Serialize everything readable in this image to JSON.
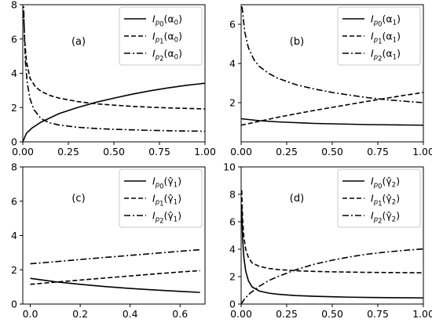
{
  "colors": {
    "line": "#000000",
    "background": "#ffffff",
    "legend_border": "#c8c8c8"
  },
  "chart_data": [
    {
      "type": "line",
      "panel_label": "(a)",
      "xlim": [
        0,
        1
      ],
      "ylim": [
        0,
        8
      ],
      "xticks": [
        "0.00",
        "0.25",
        "0.50",
        "0.75",
        "1.00"
      ],
      "yticks": [
        "0",
        "2",
        "4",
        "6",
        "8"
      ],
      "legend_position": "top-right",
      "series": [
        {
          "name": "I_{p_0}(α_0)",
          "legend": {
            "main": "I",
            "sub1": "p",
            "sub2": "0",
            "arg": "(α",
            "argsub": "0",
            "close": ")"
          },
          "style": "solid",
          "x": [
            0,
            0.02,
            0.05,
            0.1,
            0.2,
            0.3,
            0.4,
            0.5,
            0.6,
            0.7,
            0.8,
            0.9,
            1.0
          ],
          "y": [
            0.0,
            0.5,
            0.8,
            1.15,
            1.65,
            2.0,
            2.3,
            2.55,
            2.78,
            2.98,
            3.15,
            3.3,
            3.42
          ]
        },
        {
          "name": "I_{p_1}(α_0)",
          "legend": {
            "main": "I",
            "sub1": "p",
            "sub2": "1",
            "arg": "(α",
            "argsub": "0",
            "close": ")"
          },
          "style": "dashed",
          "x": [
            0.005,
            0.01,
            0.02,
            0.04,
            0.07,
            0.1,
            0.15,
            0.2,
            0.3,
            0.4,
            0.5,
            0.6,
            0.7,
            0.8,
            0.9,
            1.0
          ],
          "y": [
            7.5,
            6.0,
            4.7,
            3.7,
            3.2,
            2.95,
            2.7,
            2.55,
            2.35,
            2.22,
            2.14,
            2.07,
            2.02,
            1.98,
            1.95,
            1.92
          ]
        },
        {
          "name": "I_{p_2}(α_0)",
          "legend": {
            "main": "I",
            "sub1": "p",
            "sub2": "2",
            "arg": "(α",
            "argsub": "0",
            "close": ")"
          },
          "style": "dashdot",
          "x": [
            0.004,
            0.008,
            0.015,
            0.025,
            0.04,
            0.06,
            0.1,
            0.15,
            0.2,
            0.3,
            0.4,
            0.5,
            0.6,
            0.7,
            0.8,
            0.9,
            1.0
          ],
          "y": [
            8.4,
            6.5,
            4.6,
            3.4,
            2.5,
            1.9,
            1.35,
            1.1,
            0.98,
            0.85,
            0.78,
            0.73,
            0.7,
            0.67,
            0.65,
            0.63,
            0.62
          ]
        }
      ]
    },
    {
      "type": "line",
      "panel_label": "(b)",
      "xlim": [
        0,
        1
      ],
      "ylim": [
        0,
        7
      ],
      "xticks": [
        "0.00",
        "0.25",
        "0.50",
        "0.75",
        "1.00"
      ],
      "yticks": [
        "2",
        "4",
        "6"
      ],
      "legend_position": "top-right",
      "series": [
        {
          "name": "I_{p_0}(α_1)",
          "legend": {
            "main": "I",
            "sub1": "p",
            "sub2": "0",
            "arg": "(α",
            "argsub": "1",
            "close": ")"
          },
          "style": "solid",
          "x": [
            0,
            0.1,
            0.2,
            0.3,
            0.4,
            0.5,
            0.6,
            0.7,
            0.8,
            0.9,
            1.0
          ],
          "y": [
            1.18,
            1.08,
            1.02,
            0.98,
            0.94,
            0.92,
            0.9,
            0.88,
            0.87,
            0.86,
            0.85
          ]
        },
        {
          "name": "I_{p_1}(α_1)",
          "legend": {
            "main": "I",
            "sub1": "p",
            "sub2": "1",
            "arg": "(α",
            "argsub": "1",
            "close": ")"
          },
          "style": "dashed",
          "x": [
            0,
            0.1,
            0.2,
            0.3,
            0.4,
            0.5,
            0.6,
            0.7,
            0.8,
            0.9,
            1.0
          ],
          "y": [
            0.85,
            1.05,
            1.25,
            1.43,
            1.6,
            1.76,
            1.92,
            2.08,
            2.23,
            2.38,
            2.52
          ]
        },
        {
          "name": "I_{p_2}(α_1)",
          "legend": {
            "main": "I",
            "sub1": "p",
            "sub2": "2",
            "arg": "(α",
            "argsub": "1",
            "close": ")"
          },
          "style": "dashdot",
          "x": [
            0.005,
            0.02,
            0.04,
            0.07,
            0.1,
            0.15,
            0.2,
            0.3,
            0.4,
            0.5,
            0.6,
            0.7,
            0.8,
            0.9,
            1.0
          ],
          "y": [
            6.9,
            5.6,
            4.8,
            4.2,
            3.85,
            3.5,
            3.25,
            2.92,
            2.7,
            2.52,
            2.38,
            2.25,
            2.15,
            2.07,
            2.0
          ]
        }
      ]
    },
    {
      "type": "line",
      "panel_label": "(c)",
      "xlim": [
        -0.03,
        0.7
      ],
      "ylim": [
        0,
        8
      ],
      "xticks": [
        "0.0",
        "0.2",
        "0.4",
        "0.6"
      ],
      "yticks": [
        "0",
        "2",
        "4",
        "6",
        "8"
      ],
      "legend_position": "top-right",
      "series": [
        {
          "name": "I_{p_0}(γ̂_1)",
          "legend": {
            "main": "I",
            "sub1": "p",
            "sub2": "0",
            "arg": "(γ̂",
            "argsub": "1",
            "close": ")"
          },
          "style": "solid",
          "x": [
            0,
            0.1,
            0.2,
            0.3,
            0.4,
            0.5,
            0.6,
            0.68
          ],
          "y": [
            1.5,
            1.3,
            1.15,
            1.02,
            0.91,
            0.82,
            0.74,
            0.68
          ]
        },
        {
          "name": "I_{p_1}(γ̂_1)",
          "legend": {
            "main": "I",
            "sub1": "p",
            "sub2": "1",
            "arg": "(γ̂",
            "argsub": "1",
            "close": ")"
          },
          "style": "dashed",
          "x": [
            0,
            0.1,
            0.2,
            0.3,
            0.4,
            0.5,
            0.6,
            0.68
          ],
          "y": [
            1.15,
            1.28,
            1.4,
            1.52,
            1.64,
            1.76,
            1.87,
            1.95
          ]
        },
        {
          "name": "I_{p_2}(γ̂_1)",
          "legend": {
            "main": "I",
            "sub1": "p",
            "sub2": "2",
            "arg": "(γ̂",
            "argsub": "1",
            "close": ")"
          },
          "style": "dashdot",
          "x": [
            0,
            0.1,
            0.2,
            0.3,
            0.4,
            0.5,
            0.6,
            0.68
          ],
          "y": [
            2.35,
            2.47,
            2.6,
            2.72,
            2.84,
            2.96,
            3.08,
            3.17
          ]
        }
      ]
    },
    {
      "type": "line",
      "panel_label": "(d)",
      "xlim": [
        0,
        1
      ],
      "ylim": [
        0,
        10
      ],
      "xticks": [
        "0.00",
        "0.25",
        "0.50",
        "0.75",
        "1.00"
      ],
      "yticks": [
        "0",
        "2",
        "4",
        "6",
        "8",
        "10"
      ],
      "legend_position": "top-right",
      "series": [
        {
          "name": "I_{p_0}(γ̂_2)",
          "legend": {
            "main": "I",
            "sub1": "p",
            "sub2": "0",
            "arg": "(γ̂",
            "argsub": "2",
            "close": ")"
          },
          "style": "solid",
          "x": [
            0.003,
            0.008,
            0.015,
            0.025,
            0.04,
            0.06,
            0.1,
            0.15,
            0.2,
            0.3,
            0.4,
            0.5,
            0.6,
            0.7,
            0.8,
            0.9,
            1.0
          ],
          "y": [
            7.0,
            4.8,
            3.4,
            2.4,
            1.7,
            1.25,
            0.95,
            0.8,
            0.72,
            0.62,
            0.57,
            0.53,
            0.5,
            0.48,
            0.47,
            0.46,
            0.45
          ]
        },
        {
          "name": "I_{p_1}(γ̂_2)",
          "legend": {
            "main": "I",
            "sub1": "p",
            "sub2": "1",
            "arg": "(γ̂",
            "argsub": "2",
            "close": ")"
          },
          "style": "dashed",
          "x": [
            0.003,
            0.008,
            0.015,
            0.025,
            0.04,
            0.06,
            0.1,
            0.15,
            0.2,
            0.3,
            0.4,
            0.5,
            0.6,
            0.7,
            0.8,
            0.9,
            1.0
          ],
          "y": [
            8.3,
            6.2,
            4.9,
            4.0,
            3.4,
            3.0,
            2.75,
            2.6,
            2.52,
            2.43,
            2.38,
            2.35,
            2.33,
            2.31,
            2.3,
            2.29,
            2.28
          ]
        },
        {
          "name": "I_{p_2}(γ̂_2)",
          "legend": {
            "main": "I",
            "sub1": "p",
            "sub2": "2",
            "arg": "(γ̂",
            "argsub": "2",
            "close": ")"
          },
          "style": "dashdot",
          "x": [
            0,
            0.02,
            0.05,
            0.1,
            0.15,
            0.2,
            0.3,
            0.4,
            0.5,
            0.6,
            0.7,
            0.8,
            0.9,
            1.0
          ],
          "y": [
            0.0,
            0.4,
            0.8,
            1.3,
            1.7,
            2.0,
            2.5,
            2.9,
            3.2,
            3.45,
            3.65,
            3.8,
            3.92,
            4.02
          ]
        }
      ]
    }
  ]
}
